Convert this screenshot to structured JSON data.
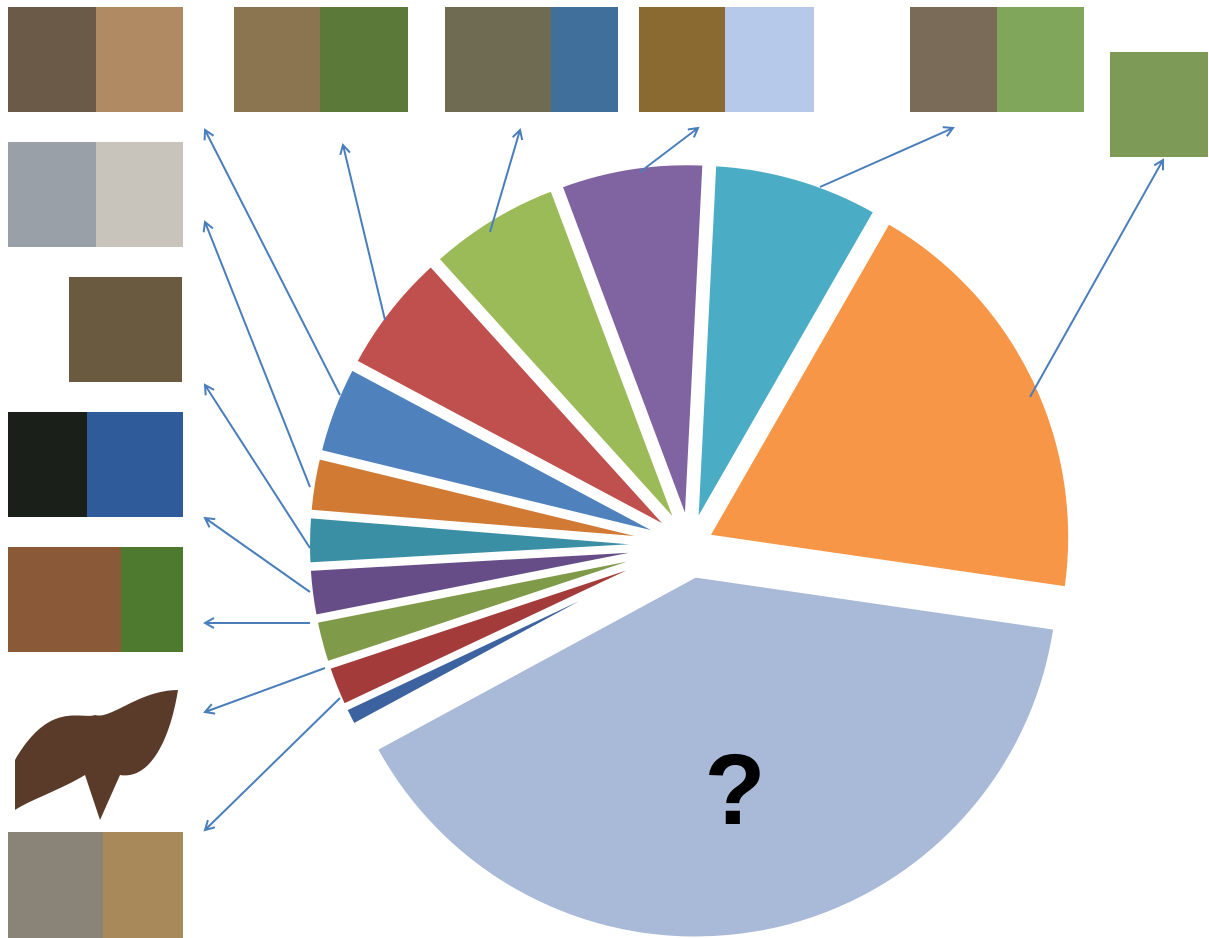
{
  "chart_data": {
    "type": "pie",
    "categories": [
      null,
      null,
      "?",
      null,
      null,
      null,
      null,
      null,
      null,
      null,
      null,
      null,
      null
    ],
    "values": [
      7.5,
      19,
      39.8,
      0.9,
      1.9,
      2,
      2.2,
      2.2,
      2.5,
      4,
      5.5,
      6,
      6.5
    ],
    "colors": [
      "#4bacc6",
      "#f79646",
      "#a9b9d8",
      "#3d62a0",
      "#a33b3b",
      "#7f9a48",
      "#664d87",
      "#3b8fa5",
      "#d07a34",
      "#4f81bd",
      "#c0504d",
      "#9bbb59",
      "#8064a2"
    ]
  }
}
